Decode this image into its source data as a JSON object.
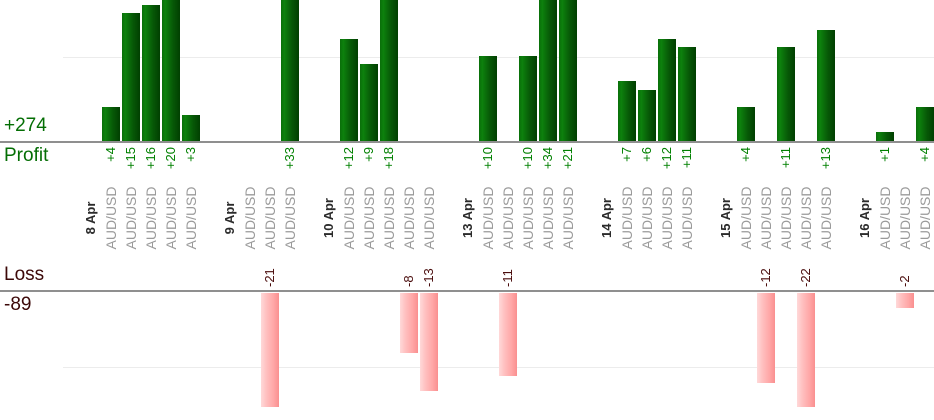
{
  "chart_data": {
    "type": "bar",
    "title": "",
    "description": "Per-trade profit (top, green) and loss (bottom, pink) bars grouped by date; bars taller than the visible band are clipped",
    "profit": {
      "total_label": "+274",
      "axis_label": "Profit",
      "gridline_value": 10,
      "value_prefix": "+"
    },
    "loss": {
      "total_label": "-89",
      "axis_label": "Loss",
      "gridline_value": -10
    },
    "groups": [
      {
        "date": "8 Apr",
        "trades": [
          {
            "symbol": "AUD/USD",
            "value": 4
          },
          {
            "symbol": "AUD/USD",
            "value": 15
          },
          {
            "symbol": "AUD/USD",
            "value": 16
          },
          {
            "symbol": "AUD/USD",
            "value": 20
          },
          {
            "symbol": "AUD/USD",
            "value": 3
          }
        ]
      },
      {
        "date": "9 Apr",
        "trades": [
          {
            "symbol": "AUD/USD",
            "value": 0
          },
          {
            "symbol": "AUD/USD",
            "value": -21
          },
          {
            "symbol": "AUD/USD",
            "value": 33
          }
        ]
      },
      {
        "date": "10 Apr",
        "trades": [
          {
            "symbol": "AUD/USD",
            "value": 12
          },
          {
            "symbol": "AUD/USD",
            "value": 9
          },
          {
            "symbol": "AUD/USD",
            "value": 18
          },
          {
            "symbol": "AUD/USD",
            "value": -8
          },
          {
            "symbol": "AUD/USD",
            "value": -13
          }
        ]
      },
      {
        "date": "13 Apr",
        "trades": [
          {
            "symbol": "AUD/USD",
            "value": 10
          },
          {
            "symbol": "AUD/USD",
            "value": -11
          },
          {
            "symbol": "AUD/USD",
            "value": 10
          },
          {
            "symbol": "AUD/USD",
            "value": 34
          },
          {
            "symbol": "AUD/USD",
            "value": 21
          }
        ]
      },
      {
        "date": "14 Apr",
        "trades": [
          {
            "symbol": "AUD/USD",
            "value": 7
          },
          {
            "symbol": "AUD/USD",
            "value": 6
          },
          {
            "symbol": "AUD/USD",
            "value": 12
          },
          {
            "symbol": "AUD/USD",
            "value": 11
          }
        ]
      },
      {
        "date": "15 Apr",
        "trades": [
          {
            "symbol": "AUD/USD",
            "value": 4
          },
          {
            "symbol": "AUD/USD",
            "value": -12
          },
          {
            "symbol": "AUD/USD",
            "value": 11
          },
          {
            "symbol": "AUD/USD",
            "value": -22
          },
          {
            "symbol": "AUD/USD",
            "value": 13
          }
        ]
      },
      {
        "date": "16 Apr",
        "trades": [
          {
            "symbol": "AUD/USD",
            "value": 1
          },
          {
            "symbol": "AUD/USD",
            "value": -2
          },
          {
            "symbol": "AUD/USD",
            "value": 4
          }
        ]
      }
    ],
    "colors": {
      "profit_bar_gradient": [
        "#0a6e0a",
        "#0d810d",
        "#075907",
        "#013f01"
      ],
      "loss_bar_gradient": [
        "#ffd9d9",
        "#ffc0c0",
        "#ffa5a5",
        "#f98f8f"
      ],
      "profit_value_text": "#008000",
      "profit_side_text": "#046e04",
      "loss_value_text": "#4a0c0c",
      "loss_side_text": "#3c0808",
      "date_text": "#2b2b2b",
      "symbol_text": "#9a9a9a",
      "axis_line": "#8f8f8f",
      "gridline": "#ececec"
    },
    "layout_hints": {
      "grid": true,
      "profit_visible_max": 16.6,
      "loss_visible_min": -15.2,
      "bars_clipped": true
    }
  }
}
